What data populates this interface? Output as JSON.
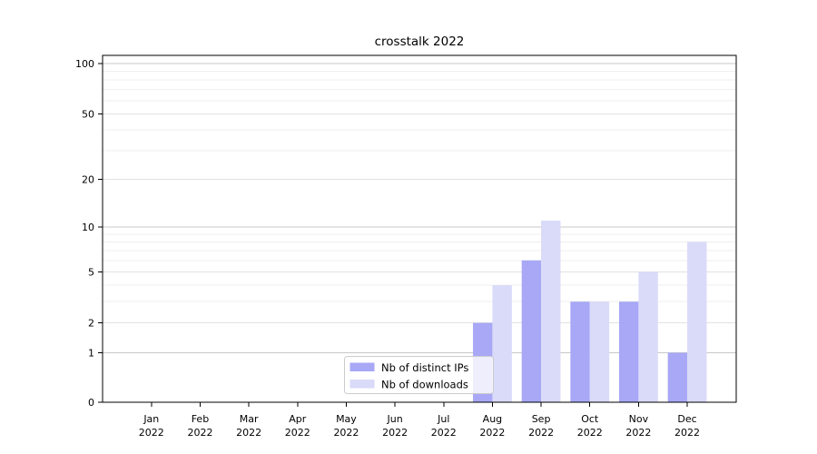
{
  "chart_data": {
    "type": "bar",
    "title": "crosstalk 2022",
    "x_axis": {
      "months": [
        "Jan",
        "Feb",
        "Mar",
        "Apr",
        "May",
        "Jun",
        "Jul",
        "Aug",
        "Sep",
        "Oct",
        "Nov",
        "Dec"
      ],
      "year": "2022"
    },
    "y_axis": {
      "scale": "log1p",
      "ticks": [
        0,
        1,
        2,
        5,
        10,
        20,
        50,
        100
      ],
      "minor_ticks": [
        3,
        4,
        6,
        7,
        8,
        9,
        30,
        40,
        60,
        70,
        80,
        90
      ],
      "range": [
        0,
        110
      ]
    },
    "series": [
      {
        "name": "Nb of distinct IPs",
        "color": "#a8a8f6",
        "values": [
          0,
          0,
          0,
          0,
          0,
          0,
          0,
          2,
          6,
          3,
          3,
          1
        ]
      },
      {
        "name": "Nb of downloads",
        "color": "#dadaf9",
        "values": [
          0,
          0,
          0,
          0,
          0,
          0,
          0,
          4,
          11,
          3,
          5,
          8
        ]
      }
    ],
    "legend": {
      "position": "lower center",
      "entries": [
        "Nb of distinct IPs",
        "Nb of downloads"
      ]
    },
    "grid": {
      "on": true,
      "decade_color": "#c8c8c8",
      "labeled_color": "#e2e2e2",
      "minor_color": "#efefef"
    },
    "colors": {
      "spine": "#000000",
      "text": "#000000",
      "background": "#ffffff",
      "legend_border": "#cccccc"
    }
  }
}
